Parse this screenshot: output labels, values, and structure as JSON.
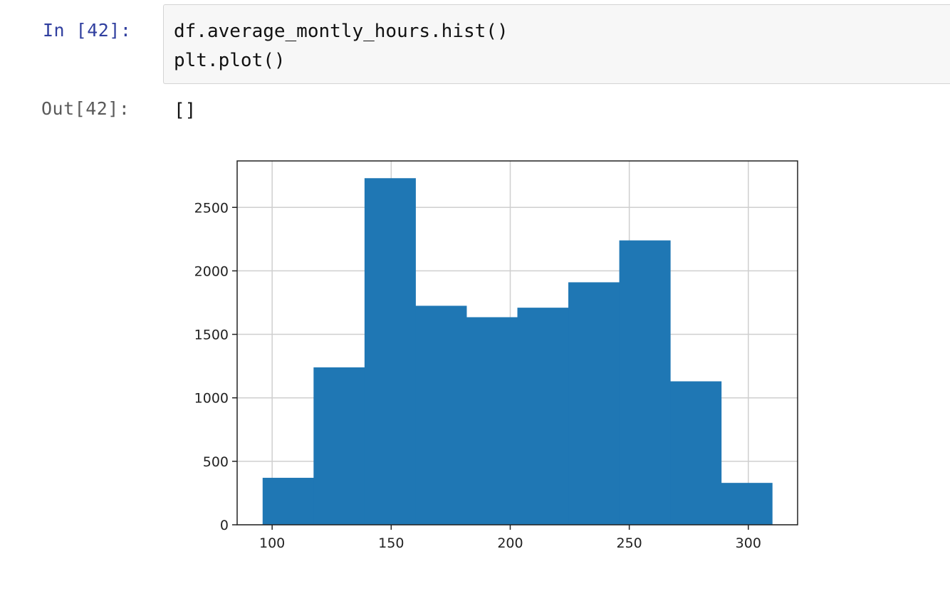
{
  "cell": {
    "in_prompt": "In [42]:",
    "out_prompt": "Out[42]:",
    "code_lines": [
      "df.average_montly_hours.hist()",
      "plt.plot()"
    ],
    "output_text": "[]"
  },
  "colors": {
    "bar": "#1f77b4",
    "grid": "#cfcfcf",
    "axis": "#222222",
    "in_prompt": "#303f9f",
    "out_prompt": "#5a5a5a"
  },
  "chart_data": {
    "type": "bar",
    "title": "",
    "xlabel": "",
    "ylabel": "",
    "bin_edges": [
      96,
      117.4,
      138.8,
      160.2,
      181.6,
      203,
      224.4,
      245.8,
      267.2,
      288.6,
      310
    ],
    "values": [
      370,
      1240,
      2730,
      1725,
      1635,
      1710,
      1910,
      2240,
      1130,
      330
    ],
    "xlim": [
      85.3,
      320.7
    ],
    "ylim": [
      0,
      2866
    ],
    "xticks": [
      100,
      150,
      200,
      250,
      300
    ],
    "yticks": [
      0,
      500,
      1000,
      1500,
      2000,
      2500
    ],
    "grid": true
  }
}
